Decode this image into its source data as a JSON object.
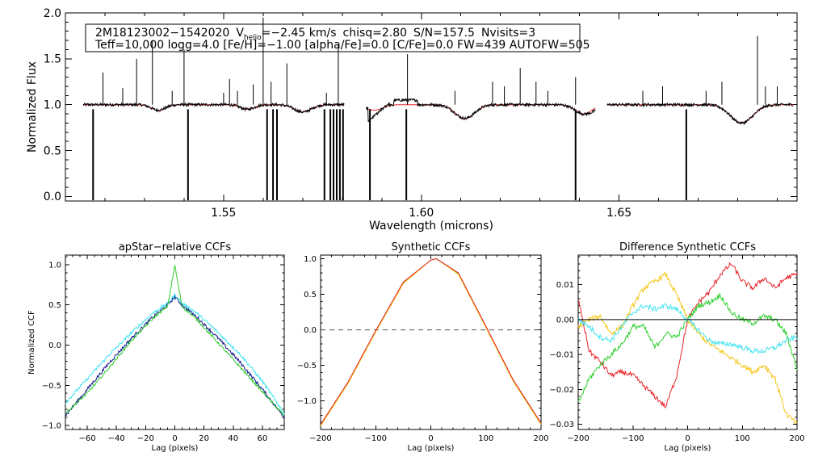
{
  "info": {
    "star_id": "2M18123002−1542020",
    "vhelio_prefix": "V",
    "vhelio_sub": "helio",
    "vhelio_rest": "=−2.45 km/s",
    "chisq": "chisq=2.80",
    "sn": "S/N=157.5",
    "nvisits": "Nvisits=3",
    "line2": "Teff=10,000 logg=4.0 [Fe/H]=−1.00 [alpha/Fe]=0.0 [C/Fe]=0.0 FW=439 AUTOFW=505"
  },
  "colors": {
    "black": "#000000",
    "red": "#e8242a",
    "green": "#2ccf2c",
    "cyan": "#3fe3f2",
    "orange": "#f5c518",
    "navy": "#14148c",
    "gray": "#555555"
  },
  "chart_data": [
    {
      "id": "spectrum",
      "type": "line",
      "title": "",
      "xlabel": "Wavelength (microns)",
      "ylabel": "Normalized Flux",
      "xlim": [
        1.51,
        1.695
      ],
      "ylim": [
        -0.05,
        2.0
      ],
      "xticks": [
        1.55,
        1.6,
        1.65
      ],
      "xtick_labels": [
        "1.55",
        "1.60",
        "1.65"
      ],
      "yticks": [
        0.0,
        0.5,
        1.0,
        1.5,
        2.0
      ],
      "ytick_labels": [
        "0.0",
        "0.5",
        "1.0",
        "1.5",
        "2.0"
      ],
      "segments": [
        [
          1.5145,
          1.5805
        ],
        [
          1.586,
          1.644
        ],
        [
          1.647,
          1.694
        ]
      ],
      "continuum": 1.0,
      "absorption_lines": [
        {
          "center": 1.5335,
          "depth": 0.06,
          "width": 0.0025
        },
        {
          "center": 1.556,
          "depth": 0.05,
          "width": 0.0025
        },
        {
          "center": 1.57,
          "depth": 0.08,
          "width": 0.003
        },
        {
          "center": 1.5881,
          "depth": 0.06,
          "width": 0.003
        },
        {
          "center": 1.611,
          "depth": 0.15,
          "width": 0.0035
        },
        {
          "center": 1.641,
          "depth": 0.1,
          "width": 0.003
        },
        {
          "center": 1.681,
          "depth": 0.2,
          "width": 0.004
        }
      ],
      "emission_spikes": [
        {
          "x": 1.5195,
          "y": 1.35
        },
        {
          "x": 1.5245,
          "y": 1.18
        },
        {
          "x": 1.528,
          "y": 1.5
        },
        {
          "x": 1.532,
          "y": 1.7
        },
        {
          "x": 1.537,
          "y": 1.15
        },
        {
          "x": 1.54,
          "y": 1.6
        },
        {
          "x": 1.55,
          "y": 1.13
        },
        {
          "x": 1.5515,
          "y": 1.28
        },
        {
          "x": 1.5535,
          "y": 1.15
        },
        {
          "x": 1.5575,
          "y": 1.22
        },
        {
          "x": 1.56,
          "y": 1.95
        },
        {
          "x": 1.562,
          "y": 1.25
        },
        {
          "x": 1.566,
          "y": 1.45
        },
        {
          "x": 1.576,
          "y": 1.13
        },
        {
          "x": 1.579,
          "y": 1.65
        },
        {
          "x": 1.5965,
          "y": 1.55
        },
        {
          "x": 1.6085,
          "y": 1.15
        },
        {
          "x": 1.618,
          "y": 1.25
        },
        {
          "x": 1.621,
          "y": 1.2
        },
        {
          "x": 1.625,
          "y": 1.4
        },
        {
          "x": 1.629,
          "y": 1.25
        },
        {
          "x": 1.632,
          "y": 1.15
        },
        {
          "x": 1.639,
          "y": 1.3
        },
        {
          "x": 1.656,
          "y": 1.15
        },
        {
          "x": 1.661,
          "y": 1.2
        },
        {
          "x": 1.672,
          "y": 1.15
        },
        {
          "x": 1.676,
          "y": 1.25
        },
        {
          "x": 1.685,
          "y": 1.75
        },
        {
          "x": 1.687,
          "y": 1.2
        },
        {
          "x": 1.69,
          "y": 1.2
        }
      ],
      "bad_pixel_drops": [
        1.517,
        1.541,
        1.561,
        1.5625,
        1.5635,
        1.5755,
        1.577,
        1.5778,
        1.5786,
        1.5794,
        1.5802,
        1.587,
        1.5962,
        1.639,
        1.667
      ],
      "series": [
        {
          "name": "observed spectrum",
          "color": "#000000"
        },
        {
          "name": "best-fit model",
          "color": "#e8242a"
        }
      ]
    },
    {
      "id": "apstar_ccf",
      "type": "line",
      "title": "apStar−relative CCFs",
      "xlabel": "Lag (pixels)",
      "ylabel": "Normalized CCF",
      "xlim": [
        -75,
        75
      ],
      "ylim": [
        -1.05,
        1.12
      ],
      "xticks": [
        -60,
        -40,
        -20,
        0,
        20,
        40,
        60
      ],
      "xtick_labels": [
        "−60",
        "−40",
        "−20",
        "0",
        "20",
        "40",
        "60"
      ],
      "yticks": [
        -1.0,
        -0.5,
        0.0,
        0.5,
        1.0
      ],
      "ytick_labels": [
        "−1.0",
        "−0.5",
        "0.0",
        "0.5",
        "1.0"
      ],
      "x": [
        -75,
        -60,
        -45,
        -30,
        -15,
        -5,
        0,
        5,
        15,
        30,
        45,
        60,
        75
      ],
      "series": [
        {
          "name": "visit ccf 1",
          "color": "#14148c",
          "values": [
            -0.88,
            -0.55,
            -0.22,
            0.08,
            0.35,
            0.5,
            0.6,
            0.5,
            0.35,
            0.08,
            -0.22,
            -0.55,
            -0.9
          ]
        },
        {
          "name": "visit ccf 2",
          "color": "#3fe3f2",
          "values": [
            -0.72,
            -0.42,
            -0.12,
            0.15,
            0.4,
            0.52,
            0.62,
            0.52,
            0.4,
            0.15,
            -0.12,
            -0.45,
            -0.85
          ]
        },
        {
          "name": "visit ccf 3",
          "color": "#2ccf2c",
          "values": [
            -0.85,
            -0.6,
            -0.28,
            0.05,
            0.33,
            0.48,
            0.99,
            0.48,
            0.32,
            0.02,
            -0.28,
            -0.58,
            -0.88
          ]
        }
      ]
    },
    {
      "id": "synthetic_ccf",
      "type": "line",
      "title": "Synthetic CCFs",
      "xlabel": "Lag (pixels)",
      "ylabel": "",
      "xlim": [
        -200,
        200
      ],
      "ylim": [
        -1.4,
        1.05
      ],
      "xticks": [
        -200,
        -100,
        0,
        100,
        200
      ],
      "xtick_labels": [
        "−200",
        "−100",
        "0",
        "100",
        "200"
      ],
      "yticks": [
        -1.0,
        -0.5,
        0.0,
        0.5,
        1.0
      ],
      "ytick_labels": [
        "−1.0",
        "−0.5",
        "0.0",
        "0.5",
        "1.0"
      ],
      "zero_line": 0.0,
      "x": [
        -200,
        -150,
        -100,
        -50,
        0,
        10,
        50,
        100,
        150,
        200
      ],
      "series": [
        {
          "name": "synthetic ccf green",
          "color": "#2ccf2c",
          "values": [
            -1.34,
            -0.74,
            -0.02,
            0.66,
            0.98,
            1.0,
            0.79,
            0.04,
            -0.72,
            -1.32
          ]
        },
        {
          "name": "synthetic ccf orange",
          "color": "#f5c518",
          "values": [
            -1.35,
            -0.75,
            -0.03,
            0.65,
            0.98,
            1.0,
            0.78,
            0.03,
            -0.73,
            -1.33
          ]
        },
        {
          "name": "synthetic ccf red",
          "color": "#e8242a",
          "values": [
            -1.33,
            -0.73,
            -0.01,
            0.67,
            0.98,
            1.0,
            0.8,
            0.05,
            -0.71,
            -1.31
          ]
        }
      ]
    },
    {
      "id": "diff_ccf",
      "type": "line",
      "title": "Difference Synthetic CCFs",
      "xlabel": "Lag (pixels)",
      "ylabel": "",
      "xlim": [
        -200,
        200
      ],
      "ylim": [
        -0.0315,
        0.0185
      ],
      "xticks": [
        -200,
        -100,
        0,
        100,
        200
      ],
      "xtick_labels": [
        "−200",
        "−100",
        "0",
        "100",
        "200"
      ],
      "yticks": [
        -0.03,
        -0.02,
        -0.01,
        0.0,
        0.01
      ],
      "ytick_labels": [
        "−0.03",
        "−0.02",
        "−0.01",
        "0.00",
        "0.01"
      ],
      "zero_line": 0.0,
      "x": [
        -200,
        -180,
        -160,
        -140,
        -120,
        -100,
        -80,
        -60,
        -40,
        -20,
        0,
        20,
        40,
        60,
        80,
        100,
        120,
        140,
        160,
        180,
        200
      ],
      "series": [
        {
          "name": "difference red",
          "color": "#e8242a",
          "values": [
            0.006,
            -0.009,
            -0.012,
            -0.016,
            -0.015,
            -0.016,
            -0.019,
            -0.022,
            -0.025,
            -0.016,
            0.0,
            0.005,
            0.008,
            0.013,
            0.016,
            0.011,
            0.009,
            0.012,
            0.009,
            0.012,
            0.013
          ]
        },
        {
          "name": "difference orange",
          "color": "#f5c518",
          "values": [
            -0.002,
            0.0,
            0.001,
            -0.004,
            -0.002,
            0.004,
            0.009,
            0.011,
            0.013,
            0.007,
            0.0,
            -0.004,
            -0.007,
            -0.009,
            -0.011,
            -0.013,
            -0.015,
            -0.013,
            -0.017,
            -0.027,
            -0.03
          ]
        },
        {
          "name": "difference green",
          "color": "#2ccf2c",
          "values": [
            -0.024,
            -0.017,
            -0.013,
            -0.01,
            -0.007,
            -0.002,
            -0.002,
            -0.008,
            -0.004,
            -0.005,
            0.0,
            0.004,
            0.005,
            0.007,
            0.002,
            0.0,
            -0.001,
            0.001,
            0.0,
            -0.004,
            -0.014
          ]
        },
        {
          "name": "difference cyan",
          "color": "#3fe3f2",
          "values": [
            0.0,
            -0.002,
            -0.005,
            -0.006,
            -0.002,
            0.002,
            0.004,
            0.003,
            0.004,
            0.003,
            0.0,
            -0.003,
            -0.006,
            -0.007,
            -0.007,
            -0.008,
            -0.009,
            -0.009,
            -0.008,
            -0.006,
            -0.005
          ]
        },
        {
          "name": "zero line",
          "color": "#000000",
          "values": [
            0,
            0,
            0,
            0,
            0,
            0,
            0,
            0,
            0,
            0,
            0,
            0,
            0,
            0,
            0,
            0,
            0,
            0,
            0,
            0,
            0
          ]
        }
      ]
    }
  ]
}
